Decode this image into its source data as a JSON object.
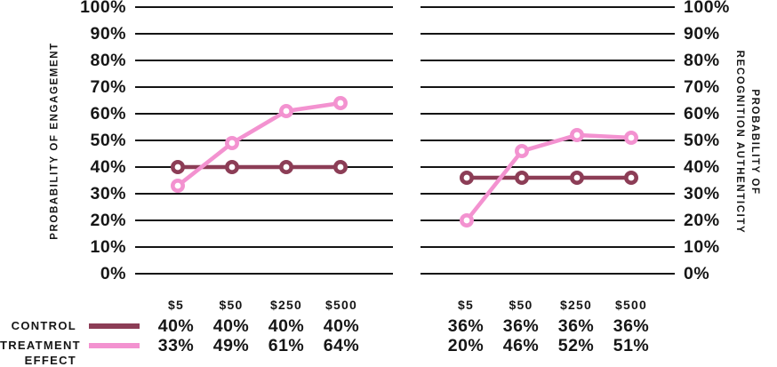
{
  "axes": {
    "left_label": "PROBABILITY OF ENGAGEMENT",
    "right_label_line1": "PROBABILITY OF",
    "right_label_line2": "RECOGNITION AUTHENTICITY",
    "yticks": [
      "100%",
      "90%",
      "80%",
      "70%",
      "60%",
      "50%",
      "40%",
      "30%",
      "20%",
      "10%",
      "0%"
    ]
  },
  "legend": {
    "control_label": "CONTROL",
    "treatment_label_line1": "TREATMENT",
    "treatment_label_line2": "EFFECT"
  },
  "colors": {
    "control": "#8C3D56",
    "treatment": "#F392D0",
    "grid": "#141414",
    "text": "#161616",
    "marker_fill": "#ffffff"
  },
  "chart_data": [
    {
      "type": "line",
      "panel": "left",
      "ylabel": "PROBABILITY OF ENGAGEMENT",
      "categories": [
        "$5",
        "$50",
        "$250",
        "$500"
      ],
      "series": [
        {
          "name": "CONTROL",
          "values": [
            40,
            40,
            40,
            40
          ],
          "labels": [
            "40%",
            "40%",
            "40%",
            "40%"
          ]
        },
        {
          "name": "TREATMENT EFFECT",
          "values": [
            33,
            49,
            61,
            64
          ],
          "labels": [
            "33%",
            "49%",
            "61%",
            "64%"
          ]
        }
      ],
      "ylim": [
        0,
        100
      ],
      "ytick_step": 10,
      "grid": true,
      "legend_position": "bottom-left"
    },
    {
      "type": "line",
      "panel": "right",
      "ylabel": "PROBABILITY OF RECOGNITION AUTHENTICITY",
      "categories": [
        "$5",
        "$50",
        "$250",
        "$500"
      ],
      "series": [
        {
          "name": "CONTROL",
          "values": [
            36,
            36,
            36,
            36
          ],
          "labels": [
            "36%",
            "36%",
            "36%",
            "36%"
          ]
        },
        {
          "name": "TREATMENT EFFECT",
          "values": [
            20,
            46,
            52,
            51
          ],
          "labels": [
            "20%",
            "46%",
            "52%",
            "51%"
          ]
        }
      ],
      "ylim": [
        0,
        100
      ],
      "ytick_step": 10,
      "grid": true,
      "legend_position": "bottom-left"
    }
  ]
}
